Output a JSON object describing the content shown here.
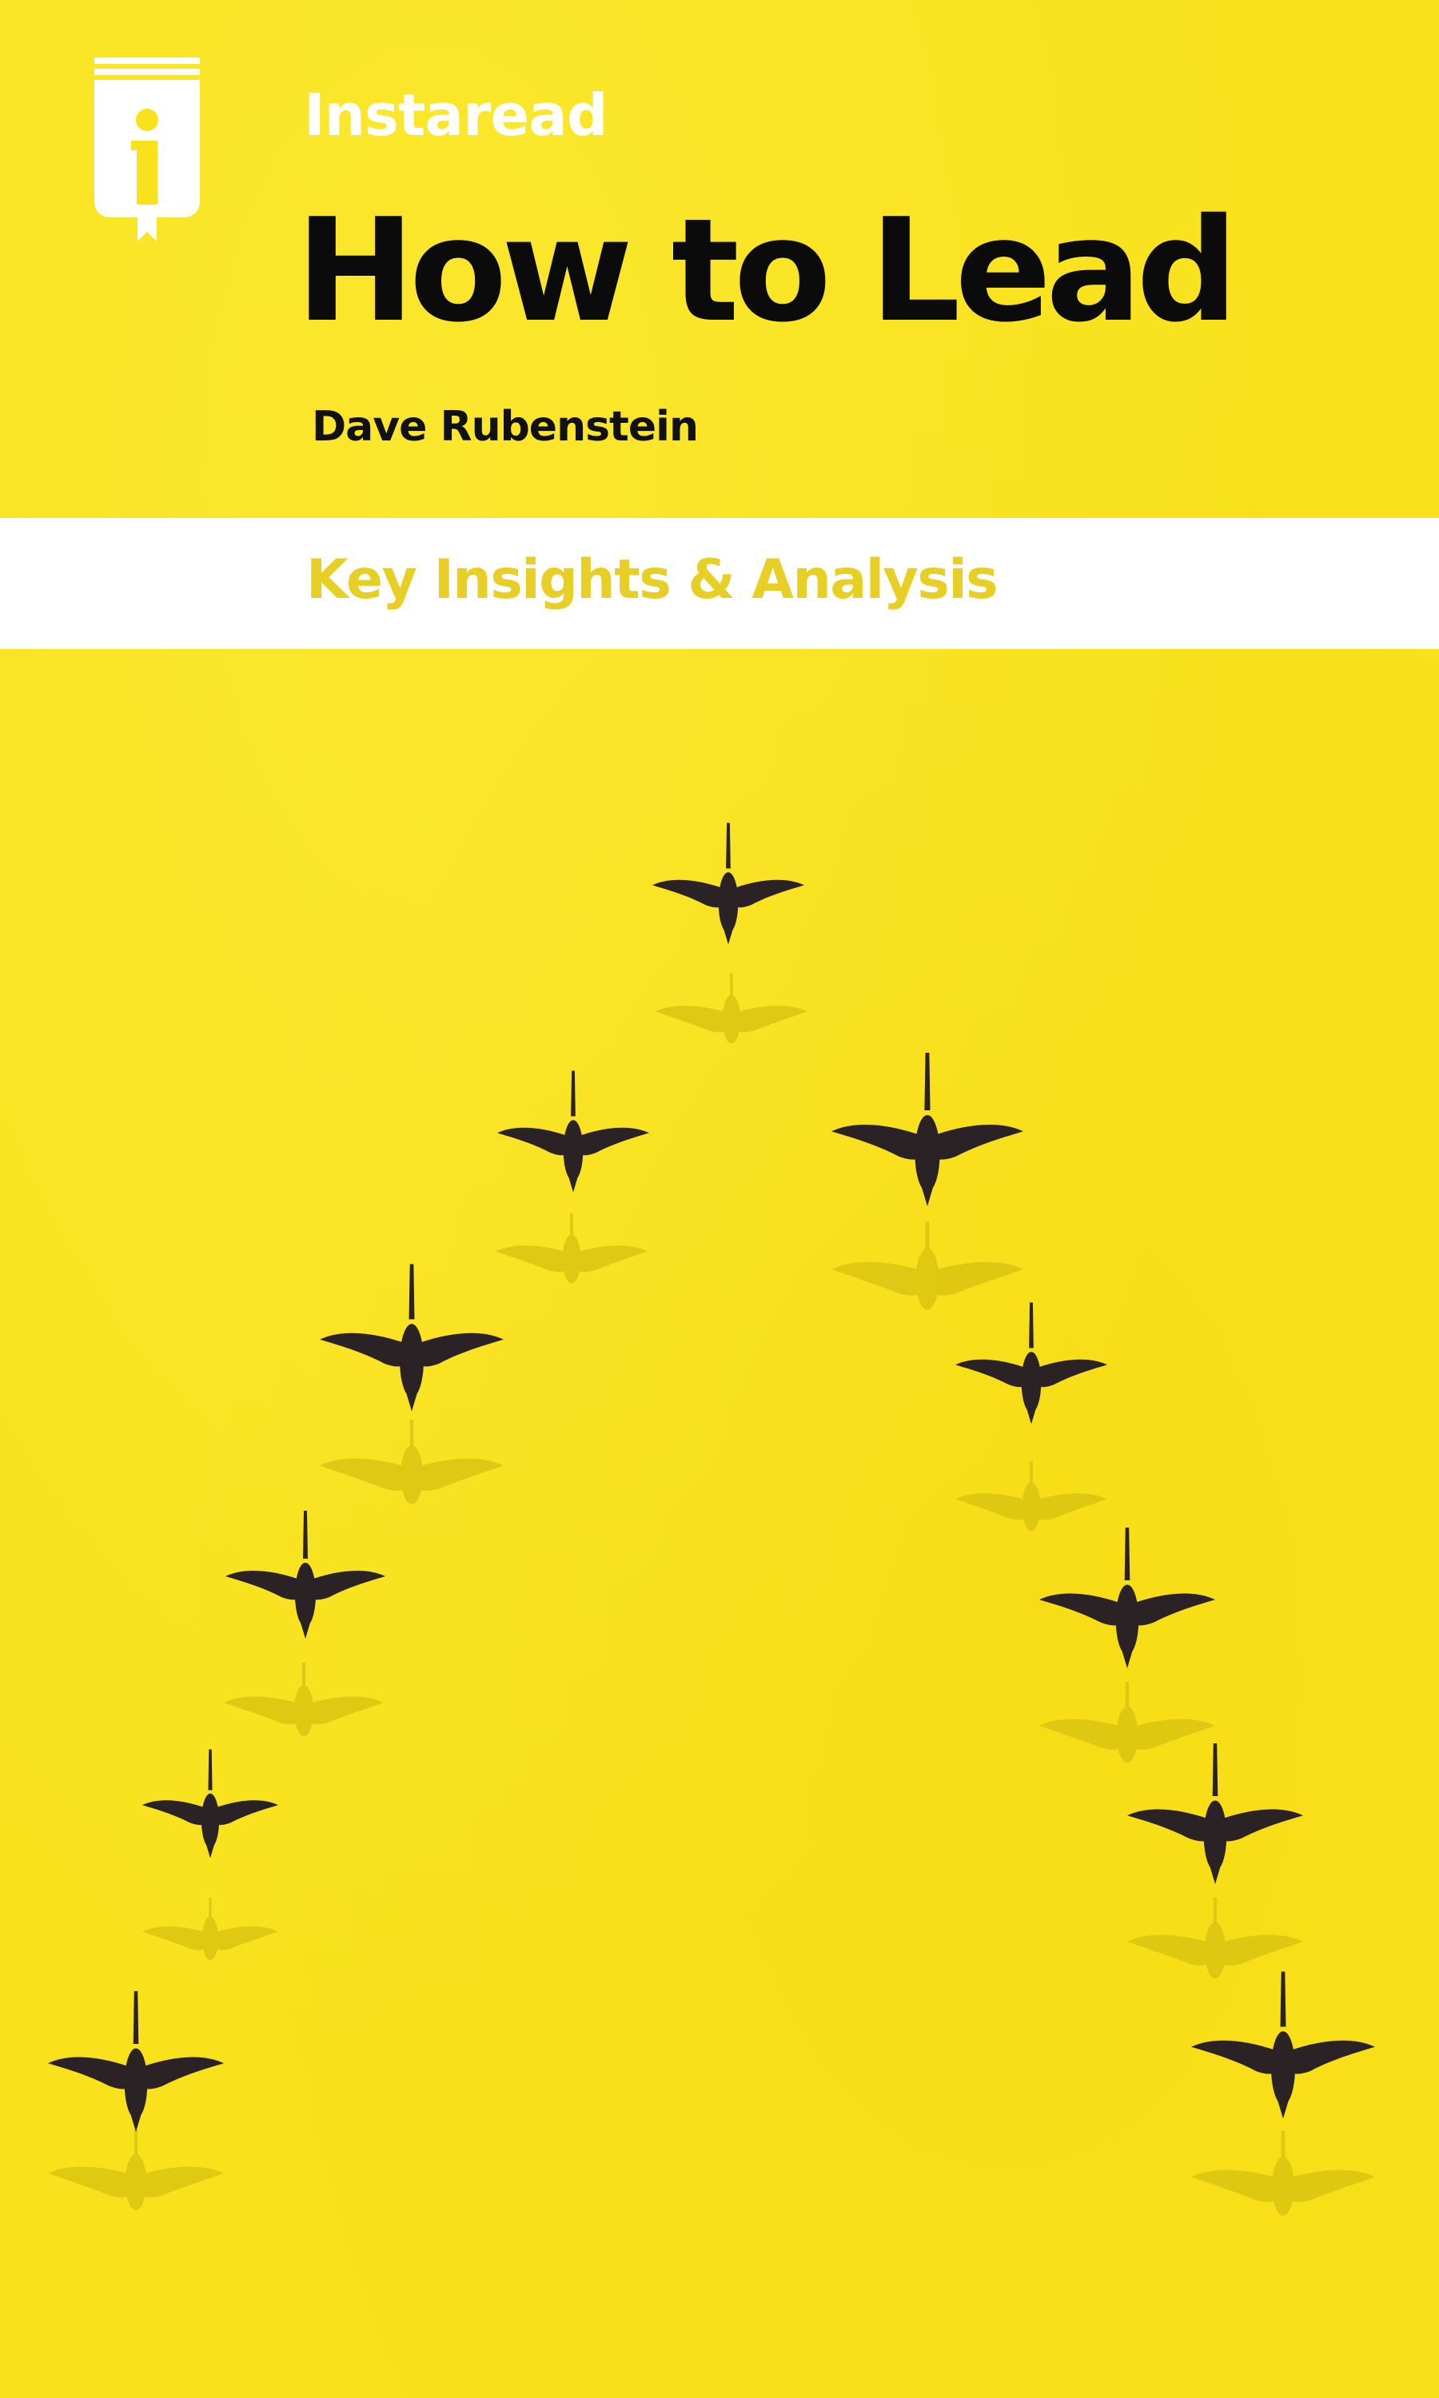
{
  "cover": {
    "brand": "Instaread",
    "title": "How to Lead",
    "author": "Dave Rubenstein",
    "tagline": "Key Insights & Analysis"
  },
  "colors": {
    "background": "#f9e21c",
    "brand_text": "#ffffff",
    "title_text": "#0b0b0b",
    "band": "#ffffff",
    "tagline_text": "#e8cf25",
    "bird": "#2a2224"
  },
  "icons": {
    "logo": "instaread-book-logo-icon",
    "bird": "flying-swan-icon"
  }
}
